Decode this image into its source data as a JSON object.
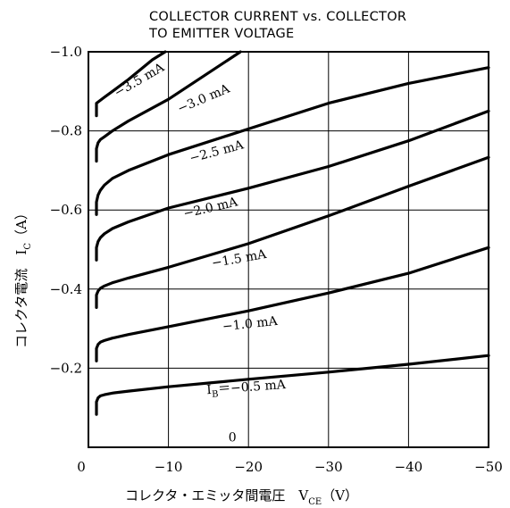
{
  "chart_data": {
    "type": "line",
    "title": [
      "COLLECTOR CURRENT vs. COLLECTOR",
      "TO EMITTER VOLTAGE"
    ],
    "xlabel": "コレクタ・エミッタ間電圧　V",
    "xlabel_sub": "CE",
    "xlabel_unit": "（V）",
    "ylabel": "コレクタ電流　I",
    "ylabel_sub": "C",
    "ylabel_unit": "（A）",
    "xlim": [
      0,
      -50
    ],
    "ylim": [
      0,
      -1.0
    ],
    "x_ticks": [
      {
        "value": 0,
        "label": "0"
      },
      {
        "value": -10,
        "label": "−10"
      },
      {
        "value": -20,
        "label": "−20"
      },
      {
        "value": -30,
        "label": "−30"
      },
      {
        "value": -40,
        "label": "−40"
      },
      {
        "value": -50,
        "label": "−50"
      }
    ],
    "y_ticks": [
      {
        "value": -0.2,
        "label": "−0.2"
      },
      {
        "value": -0.4,
        "label": "−0.4"
      },
      {
        "value": -0.6,
        "label": "−0.6"
      },
      {
        "value": -0.8,
        "label": "−0.8"
      },
      {
        "value": -1.0,
        "label": "−1.0"
      }
    ],
    "grid": true,
    "series": [
      {
        "name": "0",
        "label": "0",
        "x": [
          0,
          -50
        ],
        "y": [
          0,
          0
        ]
      },
      {
        "name": "-0.5 mA",
        "label": "I",
        "label_sub": "B",
        "label_rest": "＝−0.5 mA",
        "x": [
          -1,
          -1.2,
          -1.5,
          -2,
          -3,
          -5,
          -10,
          -20,
          -30,
          -40,
          -50
        ],
        "y": [
          -0.115,
          -0.125,
          -0.13,
          -0.133,
          -0.137,
          -0.142,
          -0.153,
          -0.172,
          -0.19,
          -0.21,
          -0.232
        ]
      },
      {
        "name": "-1.0 mA",
        "label": "−1.0 mA",
        "x": [
          -1,
          -1.2,
          -1.5,
          -2,
          -3,
          -5,
          -10,
          -20,
          -30,
          -40,
          -50
        ],
        "y": [
          -0.25,
          -0.26,
          -0.266,
          -0.27,
          -0.276,
          -0.285,
          -0.305,
          -0.345,
          -0.39,
          -0.44,
          -0.505
        ]
      },
      {
        "name": "-1.5 mA",
        "label": "−1.5 mA",
        "x": [
          -1,
          -1.2,
          -1.5,
          -2,
          -3,
          -5,
          -10,
          -20,
          -30,
          -40,
          -50
        ],
        "y": [
          -0.385,
          -0.395,
          -0.402,
          -0.408,
          -0.416,
          -0.428,
          -0.455,
          -0.515,
          -0.585,
          -0.66,
          -0.733
        ]
      },
      {
        "name": "-2.0 mA",
        "label": "−2.0 mA",
        "x": [
          -1,
          -1.2,
          -1.5,
          -2,
          -3,
          -5,
          -10,
          -20,
          -30,
          -40,
          -50
        ],
        "y": [
          -0.505,
          -0.52,
          -0.53,
          -0.54,
          -0.553,
          -0.57,
          -0.605,
          -0.655,
          -0.71,
          -0.775,
          -0.85
        ]
      },
      {
        "name": "-2.5 mA",
        "label": "−2.5 mA",
        "x": [
          -1,
          -1.2,
          -1.5,
          -2,
          -3,
          -5,
          -10,
          -20,
          -30,
          -40,
          -50
        ],
        "y": [
          -0.62,
          -0.638,
          -0.65,
          -0.663,
          -0.68,
          -0.7,
          -0.74,
          -0.805,
          -0.87,
          -0.92,
          -0.96
        ]
      },
      {
        "name": "-3.0 mA",
        "label": "−3.0 mA",
        "x": [
          -1,
          -1.2,
          -1.5,
          -2,
          -3,
          -5,
          -10,
          -19
        ],
        "y": [
          -0.755,
          -0.77,
          -0.778,
          -0.785,
          -0.8,
          -0.825,
          -0.88,
          -1.0
        ]
      },
      {
        "name": "-3.5 mA",
        "label": "−3.5 mA",
        "x": [
          -1,
          -2,
          -3,
          -5,
          -8,
          -9.6
        ],
        "y": [
          -0.87,
          -0.885,
          -0.9,
          -0.93,
          -0.98,
          -1.0
        ]
      }
    ]
  }
}
